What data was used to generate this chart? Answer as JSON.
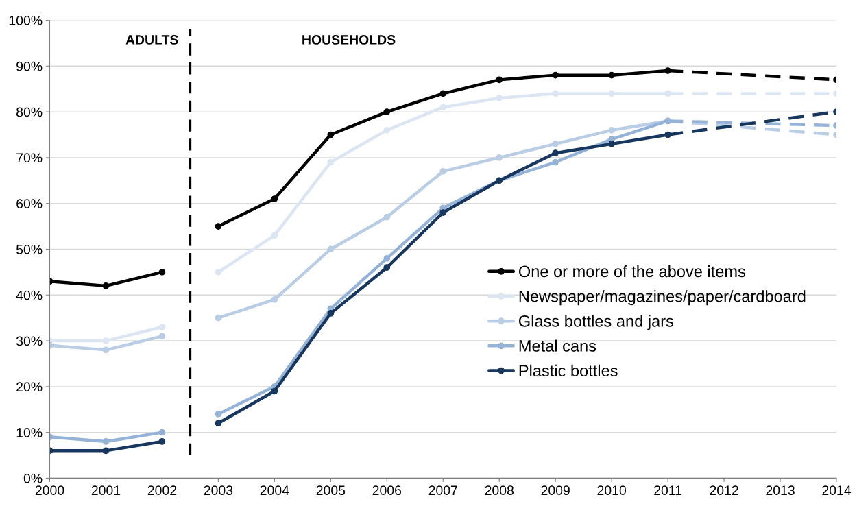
{
  "chart_data": {
    "type": "line",
    "xlim": [
      2000,
      2014
    ],
    "xticks": [
      2000,
      2001,
      2002,
      2003,
      2004,
      2005,
      2006,
      2007,
      2008,
      2009,
      2010,
      2011,
      2012,
      2013,
      2014
    ],
    "ylim": [
      0,
      100
    ],
    "yticks": [
      {
        "value": 0,
        "label": "0%"
      },
      {
        "value": 10,
        "label": "10%"
      },
      {
        "value": 20,
        "label": "20%"
      },
      {
        "value": 30,
        "label": "30%"
      },
      {
        "value": 40,
        "label": "40%"
      },
      {
        "value": 50,
        "label": "50%"
      },
      {
        "value": 60,
        "label": "60%"
      },
      {
        "value": 70,
        "label": "70%"
      },
      {
        "value": 80,
        "label": "80%"
      },
      {
        "value": 90,
        "label": "90%"
      },
      {
        "value": 100,
        "label": "100%"
      }
    ],
    "grid": "y",
    "legend": "right",
    "marker": "circle",
    "line_style": "solid",
    "ref_lines": [
      {
        "axis": "x",
        "value": 2002.5,
        "color": "#000000",
        "line_style": "dashed"
      }
    ],
    "annotations": [
      "ADULTS",
      "HOUSEHOLDS"
    ],
    "series": [
      {
        "name": "One or more of the above items",
        "color": "#000000",
        "x": [
          2003,
          2004,
          2005,
          2006,
          2007,
          2008,
          2009,
          2010,
          2011
        ],
        "values": [
          55,
          61,
          75,
          80,
          84,
          87,
          88,
          88,
          89
        ]
      },
      {
        "name": "Newspaper/magazines/paper/cardboard",
        "color": "#dce6f2",
        "x": [
          2003,
          2004,
          2005,
          2006,
          2007,
          2008,
          2009,
          2010,
          2011
        ],
        "values": [
          45,
          53,
          69,
          76,
          81,
          83,
          84,
          84,
          84
        ]
      },
      {
        "name": "Glass bottles and jars",
        "color": "#b9cde5",
        "x": [
          2003,
          2004,
          2005,
          2006,
          2007,
          2008,
          2009,
          2010,
          2011
        ],
        "values": [
          35,
          39,
          50,
          57,
          67,
          70,
          73,
          76,
          78
        ]
      },
      {
        "name": "Metal cans",
        "color": "#95b3d7",
        "x": [
          2003,
          2004,
          2005,
          2006,
          2007,
          2008,
          2009,
          2010,
          2011
        ],
        "values": [
          14,
          20,
          37,
          48,
          59,
          65,
          69,
          74,
          78
        ]
      },
      {
        "name": "Plastic bottles",
        "color": "#17375e",
        "x": [
          2003,
          2004,
          2005,
          2006,
          2007,
          2008,
          2009,
          2010,
          2011
        ],
        "values": [
          12,
          19,
          36,
          46,
          58,
          65,
          71,
          73,
          75
        ]
      },
      {
        "color": "#000000",
        "x": [
          2000,
          2001,
          2002
        ],
        "values": [
          43,
          42,
          45
        ]
      },
      {
        "color": "#dce6f2",
        "x": [
          2000,
          2001,
          2002
        ],
        "values": [
          30,
          30,
          33
        ]
      },
      {
        "color": "#b9cde5",
        "x": [
          2000,
          2001,
          2002
        ],
        "values": [
          29,
          28,
          31
        ]
      },
      {
        "color": "#95b3d7",
        "x": [
          2000,
          2001,
          2002
        ],
        "values": [
          9,
          8,
          10
        ]
      },
      {
        "color": "#17375e",
        "x": [
          2000,
          2001,
          2002
        ],
        "values": [
          6,
          6,
          8
        ]
      },
      {
        "color": "#000000",
        "x": [
          2011,
          2014
        ],
        "values": [
          89,
          87
        ],
        "line_style": "dashed"
      },
      {
        "color": "#dce6f2",
        "x": [
          2011,
          2014
        ],
        "values": [
          84,
          84
        ],
        "line_style": "dashed"
      },
      {
        "color": "#b9cde5",
        "x": [
          2011,
          2014
        ],
        "values": [
          78,
          75
        ],
        "line_style": "dashed"
      },
      {
        "color": "#95b3d7",
        "x": [
          2011,
          2014
        ],
        "values": [
          78,
          77
        ],
        "line_style": "dashed"
      },
      {
        "color": "#17375e",
        "x": [
          2011,
          2014
        ],
        "values": [
          75,
          80
        ],
        "line_style": "dashed"
      }
    ]
  }
}
